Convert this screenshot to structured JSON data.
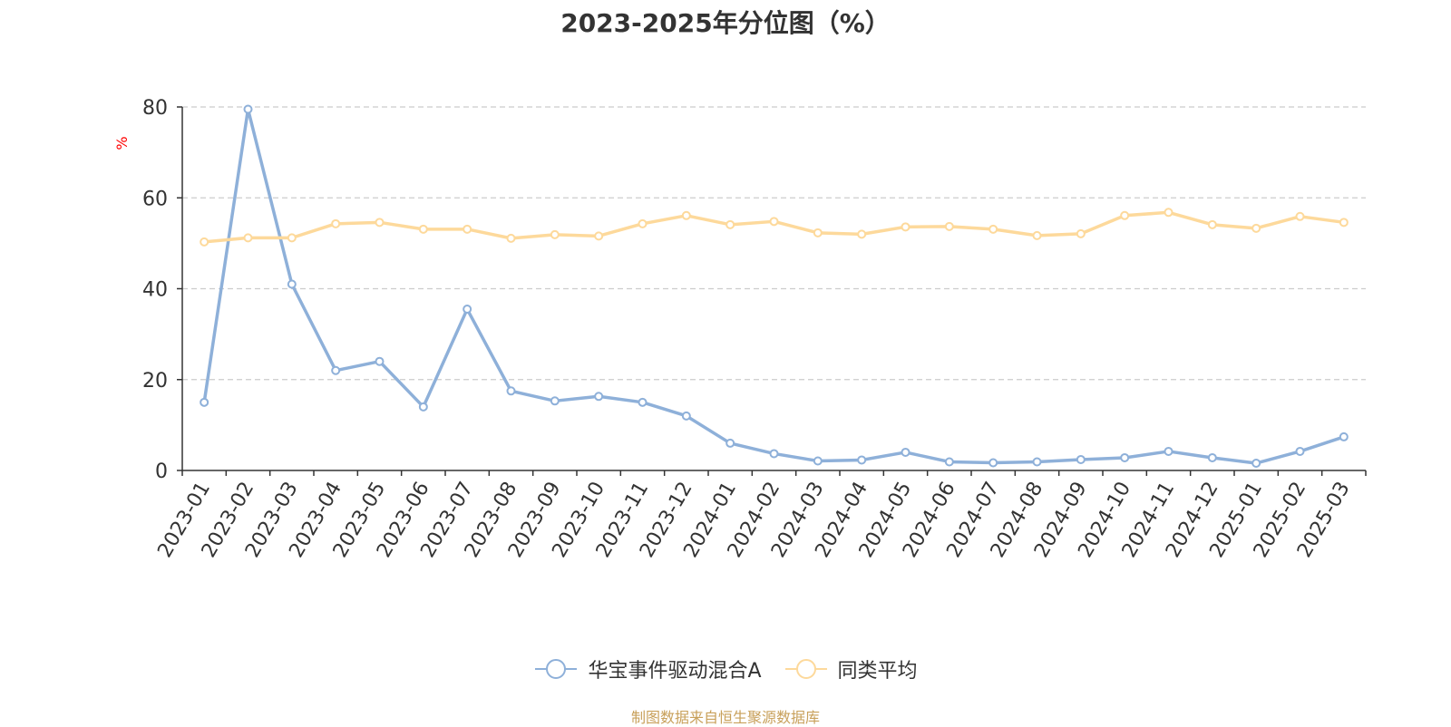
{
  "chart_data": {
    "type": "line",
    "title": "2023-2025年分位图（%）",
    "ylabel": "%",
    "ylim": [
      0,
      80
    ],
    "yticks": [
      0,
      20,
      40,
      60,
      80
    ],
    "grid": true,
    "legend_position": "bottom",
    "categories": [
      "2023-01",
      "2023-02",
      "2023-03",
      "2023-04",
      "2023-05",
      "2023-06",
      "2023-07",
      "2023-08",
      "2023-09",
      "2023-10",
      "2023-11",
      "2023-12",
      "2024-01",
      "2024-02",
      "2024-03",
      "2024-04",
      "2024-05",
      "2024-06",
      "2024-07",
      "2024-08",
      "2024-09",
      "2024-10",
      "2024-11",
      "2024-12",
      "2025-01",
      "2025-02",
      "2025-03"
    ],
    "series": [
      {
        "name": "华宝事件驱动混合A",
        "color": "#8eb0d9",
        "values": [
          15,
          79.5,
          41,
          22,
          24,
          14,
          35.5,
          17.5,
          15.3,
          16.3,
          15,
          12,
          6,
          3.7,
          2.1,
          2.3,
          4,
          1.9,
          1.7,
          1.9,
          2.4,
          2.8,
          4.2,
          2.8,
          1.6,
          4.2,
          7.4
        ]
      },
      {
        "name": "同类平均",
        "color": "#fdd99b",
        "values": [
          50.3,
          51.2,
          51.2,
          54.3,
          54.6,
          53.1,
          53.1,
          51.1,
          51.9,
          51.6,
          54.3,
          56.1,
          54.1,
          54.8,
          52.3,
          52,
          53.6,
          53.7,
          53.1,
          51.7,
          52.1,
          56.1,
          56.8,
          54.1,
          53.3,
          55.9,
          54.6
        ]
      }
    ]
  },
  "footer": {
    "source": "制图数据来自恒生聚源数据库"
  }
}
